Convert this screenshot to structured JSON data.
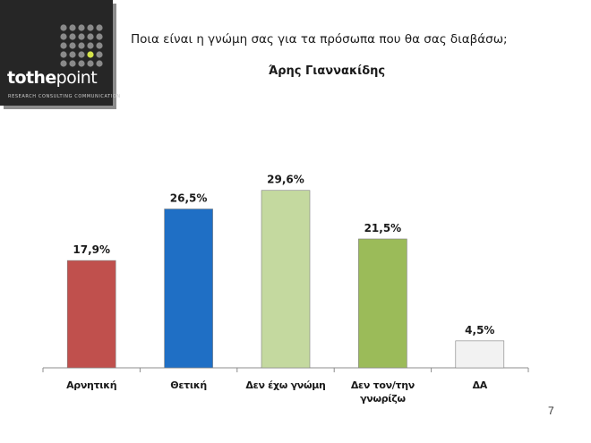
{
  "header": {
    "question": "Ποια είναι η γνώμη σας για τα πρόσωπα που θα σας διαβάσω;",
    "subject": "Άρης Γιαννακίδης"
  },
  "logo": {
    "word_to": "to",
    "word_the": "the",
    "word_point": "point",
    "tagline": "RESEARCH CONSULTING COMMUNICATION",
    "dot_accent_color": "#d4e34a"
  },
  "footer": {
    "page_number": "7"
  },
  "chart_data": {
    "type": "bar",
    "categories": [
      "Αρνητική",
      "Θετική",
      "Δεν έχω γνώμη",
      "Δεν τον/την γνωρίζω",
      "ΔΑ"
    ],
    "category_lines": [
      [
        "Αρνητική"
      ],
      [
        "Θετική"
      ],
      [
        "Δεν έχω γνώμη"
      ],
      [
        "Δεν τον/την",
        "γνωρίζω"
      ],
      [
        "ΔΑ"
      ]
    ],
    "values": [
      17.9,
      26.5,
      29.6,
      21.5,
      4.5
    ],
    "value_labels": [
      "17,9%",
      "26,5%",
      "29,6%",
      "21,5%",
      "4,5%"
    ],
    "colors": [
      "#c0504d",
      "#1f6fc5",
      "#c4d99f",
      "#9bbb59",
      "#f2f2f2"
    ],
    "ylim": [
      0,
      31.5
    ],
    "grid": false,
    "legend": "none"
  }
}
